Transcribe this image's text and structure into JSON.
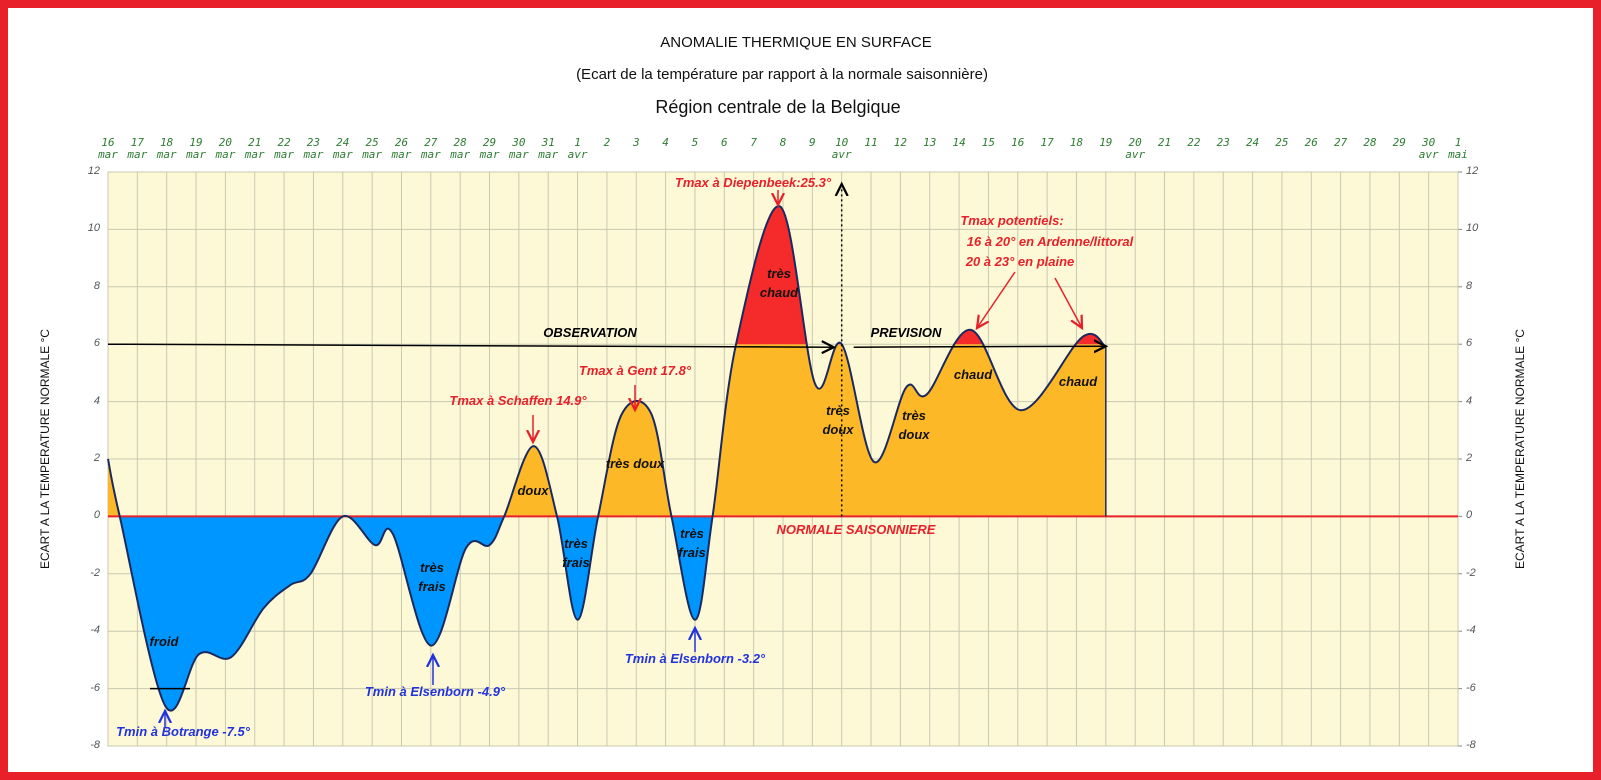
{
  "chart_data": {
    "type": "area",
    "title": "ANOMALIE THERMIQUE EN SURFACE",
    "subtitle": "(Ecart de la température par rapport à la normale saisonnière)",
    "region": "Région centrale de la Belgique",
    "ylabel": "ECART A LA TEMPERATURE NORMALE °C",
    "y2label": "ECART A LA TEMPERATURE NORMALE °C",
    "x": [
      0,
      0.4,
      1.95,
      3.1,
      4.2,
      5.3,
      6.2,
      6.9,
      8.0,
      9.1,
      9.7,
      11.0,
      12.2,
      13.0,
      13.5,
      14.5,
      15.3,
      16.0,
      16.7,
      17.5,
      18.5,
      19.2,
      20.0,
      20.6,
      21.4,
      22.9,
      24.1,
      25.0,
      26.1,
      27.2,
      27.9,
      29.4,
      31.1,
      33.2,
      34.0
    ],
    "values": [
      2.0,
      0,
      -6.6,
      -4.8,
      -4.9,
      -3.2,
      -2.4,
      -2.0,
      0,
      -1.0,
      -0.6,
      -4.5,
      -1.1,
      -1.0,
      0,
      2.45,
      0,
      -3.6,
      0,
      3.55,
      3.6,
      0,
      -3.6,
      0,
      6.0,
      10.8,
      4.6,
      6.0,
      1.9,
      4.5,
      4.25,
      6.5,
      3.7,
      6.25,
      5.9
    ],
    "line_color": "#1b2a5e",
    "thresholds": [
      0,
      6
    ],
    "band_colors": [
      "#0096ff",
      "#fdb827",
      "#f52a2a"
    ],
    "xlim": [
      0,
      46
    ],
    "xticks": [
      {
        "value": 0,
        "label": "16 mar"
      },
      {
        "value": 1,
        "label": "17 mar"
      },
      {
        "value": 2,
        "label": "18 mar"
      },
      {
        "value": 3,
        "label": "19 mar"
      },
      {
        "value": 4,
        "label": "20 mar"
      },
      {
        "value": 5,
        "label": "21 mar"
      },
      {
        "value": 6,
        "label": "22 mar"
      },
      {
        "value": 7,
        "label": "23 mar"
      },
      {
        "value": 8,
        "label": "24 mar"
      },
      {
        "value": 9,
        "label": "25 mar"
      },
      {
        "value": 10,
        "label": "26 mar"
      },
      {
        "value": 11,
        "label": "27 mar"
      },
      {
        "value": 12,
        "label": "28 mar"
      },
      {
        "value": 13,
        "label": "29 mar"
      },
      {
        "value": 14,
        "label": "30 mar"
      },
      {
        "value": 15,
        "label": "31 mar"
      },
      {
        "value": 16,
        "label": "1 avr"
      },
      {
        "value": 17,
        "label": "2"
      },
      {
        "value": 18,
        "label": "3"
      },
      {
        "value": 19,
        "label": "4"
      },
      {
        "value": 20,
        "label": "5"
      },
      {
        "value": 21,
        "label": "6"
      },
      {
        "value": 22,
        "label": "7"
      },
      {
        "value": 23,
        "label": "8"
      },
      {
        "value": 24,
        "label": "9"
      },
      {
        "value": 25,
        "label": "10 avr"
      },
      {
        "value": 26,
        "label": "11"
      },
      {
        "value": 27,
        "label": "12"
      },
      {
        "value": 28,
        "label": "13"
      },
      {
        "value": 29,
        "label": "14"
      },
      {
        "value": 30,
        "label": "15"
      },
      {
        "value": 31,
        "label": "16"
      },
      {
        "value": 32,
        "label": "17"
      },
      {
        "value": 33,
        "label": "18"
      },
      {
        "value": 34,
        "label": "19"
      },
      {
        "value": 35,
        "label": "20 avr"
      },
      {
        "value": 36,
        "label": "21"
      },
      {
        "value": 37,
        "label": "22"
      },
      {
        "value": 38,
        "label": "23"
      },
      {
        "value": 39,
        "label": "24"
      },
      {
        "value": 40,
        "label": "25"
      },
      {
        "value": 41,
        "label": "26"
      },
      {
        "value": 42,
        "label": "27"
      },
      {
        "value": 43,
        "label": "28"
      },
      {
        "value": 44,
        "label": "29"
      },
      {
        "value": 45,
        "label": "30 avr"
      },
      {
        "value": 46,
        "label": "1 mai"
      }
    ],
    "ylim": [
      -8,
      12
    ],
    "yticks": [
      -8,
      -6,
      -4,
      -2,
      0,
      2,
      4,
      6,
      8,
      10,
      12
    ],
    "y2lim": [
      -8,
      12
    ],
    "y2ticks": [
      -8,
      -6,
      -4,
      -2,
      0,
      2,
      4,
      6,
      8,
      10,
      12
    ],
    "grid": true,
    "annotations": [
      "Tmax à Diepenbeek:25.3°",
      "Tmax potentiels:",
      "16 à 20° en Ardenne/littoral",
      "20 à 23° en plaine",
      "Tmax à Gent 17.8°",
      "Tmax à Schaffen 14.9°",
      "NORMALE SAISONNIERE",
      "OBSERVATION",
      "PREVISION",
      "Tmin à Botrange -7.5°",
      "Tmin à Elsenborn -4.9°",
      "Tmin à Elsenborn -3.2°"
    ],
    "area_labels": [
      "froid",
      "très frais",
      "très frais",
      "très frais",
      "doux",
      "très doux",
      "très chaud",
      "très doux",
      "très doux",
      "chaud",
      "chaud"
    ]
  }
}
